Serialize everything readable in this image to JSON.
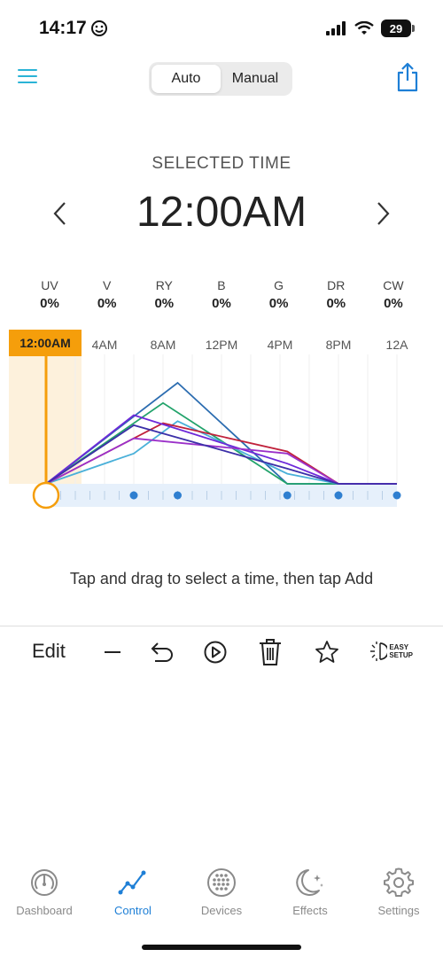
{
  "status_bar": {
    "time": "14:17",
    "battery": "29"
  },
  "header": {
    "mode_auto": "Auto",
    "mode_manual": "Manual"
  },
  "selected": {
    "label": "SELECTED TIME",
    "time": "12:00AM"
  },
  "channels": [
    {
      "name": "UV",
      "value": "0%"
    },
    {
      "name": "V",
      "value": "0%"
    },
    {
      "name": "RY",
      "value": "0%"
    },
    {
      "name": "B",
      "value": "0%"
    },
    {
      "name": "G",
      "value": "0%"
    },
    {
      "name": "DR",
      "value": "0%"
    },
    {
      "name": "CW",
      "value": "0%"
    }
  ],
  "chart_data": {
    "type": "line",
    "selected_label": "12:00AM",
    "x_ticks": [
      "4AM",
      "8AM",
      "12PM",
      "4PM",
      "8PM",
      "12A"
    ],
    "x_range_hours": [
      0,
      24
    ],
    "y_range": [
      0,
      100
    ],
    "keyframe_hours": [
      0,
      6,
      9,
      16.5,
      20,
      24
    ],
    "series": [
      {
        "color": "#2b6cb0",
        "points": [
          [
            0,
            0
          ],
          [
            9,
            100
          ],
          [
            16.5,
            0
          ],
          [
            24,
            0
          ]
        ]
      },
      {
        "color": "#22a36b",
        "points": [
          [
            0,
            0
          ],
          [
            8,
            80
          ],
          [
            16.5,
            0
          ],
          [
            24,
            0
          ]
        ]
      },
      {
        "color": "#4ab0d9",
        "points": [
          [
            0,
            0
          ],
          [
            6,
            30
          ],
          [
            9,
            62
          ],
          [
            16.5,
            10
          ],
          [
            20,
            0
          ],
          [
            24,
            0
          ]
        ]
      },
      {
        "color": "#c0213b",
        "points": [
          [
            0,
            0
          ],
          [
            8,
            60
          ],
          [
            16.5,
            32
          ],
          [
            20,
            0
          ],
          [
            24,
            0
          ]
        ]
      },
      {
        "color": "#6d28d9",
        "points": [
          [
            0,
            0
          ],
          [
            6,
            68
          ],
          [
            16.5,
            20
          ],
          [
            20,
            0
          ],
          [
            24,
            0
          ]
        ]
      },
      {
        "color": "#9b30c9",
        "points": [
          [
            0,
            0
          ],
          [
            6,
            45
          ],
          [
            16.5,
            30
          ],
          [
            20,
            0
          ],
          [
            24,
            0
          ]
        ]
      },
      {
        "color": "#3b2fa8",
        "points": [
          [
            0,
            0
          ],
          [
            6,
            58
          ],
          [
            16.5,
            15
          ],
          [
            20,
            0
          ],
          [
            24,
            0
          ]
        ]
      }
    ]
  },
  "hint": "Tap and drag to select a time, then tap Add",
  "toolbar": {
    "edit": "Edit",
    "easy_line1": "EASY",
    "easy_line2": "SETUP"
  },
  "tabs": [
    {
      "label": "Dashboard",
      "icon": "dashboard-icon"
    },
    {
      "label": "Control",
      "icon": "control-icon"
    },
    {
      "label": "Devices",
      "icon": "devices-icon"
    },
    {
      "label": "Effects",
      "icon": "effects-icon"
    },
    {
      "label": "Settings",
      "icon": "settings-icon"
    }
  ],
  "colors": {
    "accent": "#2ab3d6",
    "active_tab": "#1e7fd6",
    "selection": "#f59e0b"
  }
}
